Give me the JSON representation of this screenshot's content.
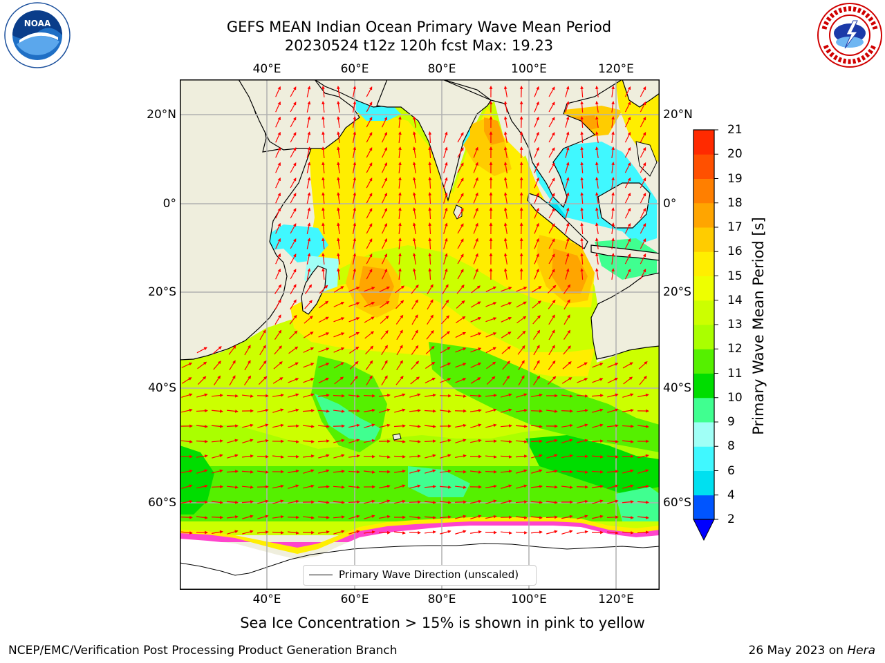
{
  "title_line1": "GEFS MEAN Indian Ocean Primary Wave Mean Period",
  "title_line2": "20230524 t12z 120h fcst   Max: 19.23",
  "lon_labels": [
    "40°E",
    "60°E",
    "80°E",
    "100°E",
    "120°E"
  ],
  "lat_labels": [
    "20°N",
    "0°",
    "20°S",
    "40°S",
    "60°S"
  ],
  "colorbar": {
    "label": "Primary Wave Mean Period [s]",
    "ticks": [
      "2",
      "4",
      "6",
      "8",
      "9",
      "10",
      "11",
      "12",
      "13",
      "14",
      "15",
      "16",
      "17",
      "18",
      "19",
      "20",
      "21"
    ],
    "colors": [
      "#0055ff",
      "#00e0f0",
      "#40f8ff",
      "#a0fff6",
      "#40ff90",
      "#00dd00",
      "#55f000",
      "#aaff00",
      "#ccff00",
      "#eeff00",
      "#ffee00",
      "#ffcc00",
      "#ffa500",
      "#ff7f00",
      "#ff5000",
      "#ff2a00"
    ],
    "under_color": "#0000ff"
  },
  "legend_text": "Primary Wave Direction (unscaled)",
  "sea_ice_note": "Sea Ice Concentration > 15% is shown in pink to yellow",
  "footer_left": "NCEP/EMC/Verification Post Processing Product Generation Branch",
  "footer_date": "26 May 2023 on ",
  "footer_host": "Hera",
  "logos": {
    "left": "noaa-logo",
    "right": "nws-logo"
  }
}
